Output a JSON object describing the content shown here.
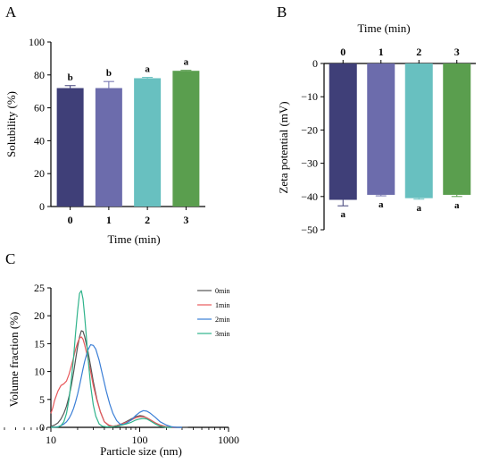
{
  "panels": {
    "a": "A",
    "b": "B",
    "c": "C"
  },
  "chart_data": [
    {
      "type": "bar",
      "categories": [
        "0",
        "1",
        "2",
        "3"
      ],
      "values": [
        72,
        72,
        78,
        82.5
      ],
      "errors": [
        1.5,
        4,
        0.5,
        0.3
      ],
      "significance": [
        "b",
        "b",
        "a",
        "a"
      ],
      "colors": [
        "#3f3f78",
        "#6c6cac",
        "#68c0c0",
        "#5a9e4e"
      ],
      "xlabel": "Time (min)",
      "ylabel": "Solubility (%)",
      "ylim": [
        0,
        100
      ],
      "yticks": [
        "0",
        "20",
        "40",
        "60",
        "80",
        "100"
      ]
    },
    {
      "type": "bar",
      "categories": [
        "0",
        "1",
        "2",
        "3"
      ],
      "values": [
        -41,
        -39.5,
        -40.5,
        -39.5
      ],
      "errors": [
        1.8,
        0.3,
        0.3,
        0.5
      ],
      "significance": [
        "a",
        "a",
        "a",
        "a"
      ],
      "colors": [
        "#3f3f78",
        "#6c6cac",
        "#68c0c0",
        "#5a9e4e"
      ],
      "xlabel": "Time (min)",
      "ylabel": "Zeta potential (mV)",
      "ylim": [
        -50,
        0
      ],
      "yticks": [
        "0",
        "−10",
        "−20",
        "−30",
        "−40",
        "−50"
      ],
      "xaxis_position": "top"
    },
    {
      "type": "line",
      "xlabel": "Particle size (nm)",
      "ylabel": "Volume fraction (%)",
      "xscale": "log",
      "xlim": [
        10,
        1000
      ],
      "xticks": [
        "10",
        "100",
        "1000"
      ],
      "ylim": [
        0,
        25
      ],
      "yticks": [
        "0",
        "5",
        "10",
        "15",
        "20",
        "25"
      ],
      "legend_position": "top-right",
      "series": [
        {
          "name": "0min",
          "color": "#555555",
          "x": [
            10,
            11,
            12,
            13,
            14,
            15,
            16,
            17,
            18,
            19,
            20,
            21,
            22,
            23,
            24,
            26,
            28,
            30,
            33,
            36,
            40,
            45,
            50,
            55,
            60,
            70,
            80,
            90,
            100,
            110,
            120,
            130,
            150,
            170,
            200,
            230,
            260,
            300,
            350
          ],
          "y": [
            0.2,
            0.4,
            0.8,
            1.5,
            2.5,
            3.8,
            5.5,
            7.5,
            9.8,
            12.2,
            14.5,
            16.2,
            17.3,
            17.2,
            16.3,
            13.8,
            11.0,
            8.2,
            5.0,
            2.8,
            1.0,
            0.3,
            0.2,
            0.3,
            0.5,
            1.0,
            1.5,
            1.9,
            2.1,
            2.0,
            1.7,
            1.4,
            0.8,
            0.4,
            0.1,
            0,
            0,
            0,
            0
          ]
        },
        {
          "name": "1min",
          "color": "#e8595c",
          "x": [
            10,
            10.5,
            11,
            12,
            13,
            14,
            15,
            16,
            17,
            18,
            19,
            20,
            21,
            22,
            23,
            24,
            26,
            28,
            30,
            33,
            36,
            40,
            45,
            50,
            55,
            60,
            70,
            80,
            90,
            100,
            110,
            120,
            130,
            150,
            170,
            200,
            230,
            260
          ],
          "y": [
            2.5,
            3.5,
            4.8,
            6.5,
            7.5,
            7.8,
            8.3,
            9.5,
            11.0,
            12.5,
            14.0,
            15.2,
            16.0,
            16.2,
            15.8,
            14.8,
            12.5,
            10.0,
            7.5,
            4.8,
            2.8,
            1.0,
            0.4,
            0.2,
            0.3,
            0.5,
            0.9,
            1.3,
            1.7,
            1.9,
            1.9,
            1.7,
            1.4,
            0.8,
            0.4,
            0.1,
            0,
            0
          ]
        },
        {
          "name": "2min",
          "color": "#3a7ed6",
          "x": [
            10,
            11,
            12,
            13,
            14,
            15,
            16,
            17,
            18,
            19,
            20,
            21,
            22,
            23,
            24,
            26,
            28,
            30,
            32,
            35,
            38,
            42,
            46,
            50,
            55,
            60,
            65,
            70,
            80,
            90,
            100,
            110,
            120,
            130,
            150,
            170,
            200,
            230,
            260,
            300
          ],
          "y": [
            0,
            0.05,
            0.1,
            0.3,
            0.6,
            1.0,
            1.6,
            2.4,
            3.4,
            4.6,
            6.0,
            7.5,
            9.0,
            10.5,
            11.8,
            13.8,
            14.8,
            14.7,
            14.0,
            12.0,
            9.5,
            6.5,
            4.2,
            2.5,
            1.2,
            0.6,
            0.5,
            0.7,
            1.3,
            2.1,
            2.7,
            3.0,
            2.9,
            2.6,
            1.8,
            1.0,
            0.4,
            0.1,
            0,
            0
          ]
        },
        {
          "name": "3min",
          "color": "#2fb38b",
          "x": [
            10,
            12,
            13,
            14,
            15,
            16,
            17,
            18,
            19,
            20,
            21,
            22,
            23,
            24,
            25,
            26,
            28,
            30,
            32,
            35,
            38,
            42,
            46,
            50,
            60,
            70,
            80,
            90,
            100,
            110,
            120,
            130,
            150,
            170,
            200,
            230
          ],
          "y": [
            0,
            0.05,
            0.3,
            1.0,
            2.5,
            5.0,
            8.5,
            12.5,
            17.0,
            21.0,
            24.0,
            24.5,
            23.0,
            20.0,
            16.5,
            13.0,
            7.5,
            4.0,
            2.0,
            0.6,
            0.2,
            0.1,
            0.1,
            0.1,
            0.3,
            0.6,
            0.9,
            1.3,
            1.5,
            1.6,
            1.5,
            1.2,
            0.6,
            0.2,
            0,
            0
          ]
        }
      ]
    }
  ]
}
